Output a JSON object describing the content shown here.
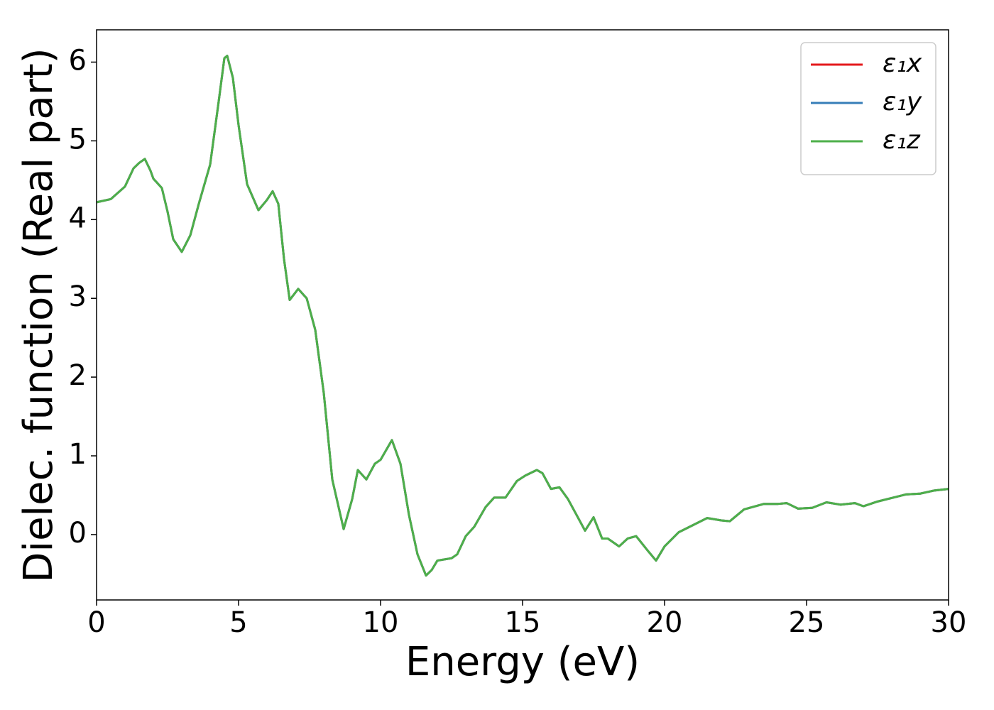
{
  "chart_data": {
    "type": "line",
    "xlabel": "Energy (eV)",
    "ylabel": "Dielec. function (Real part)",
    "x": [
      0,
      0.5,
      1.0,
      1.3,
      1.5,
      1.7,
      1.9,
      2.0,
      2.3,
      2.5,
      2.7,
      3.0,
      3.3,
      3.6,
      4.0,
      4.3,
      4.5,
      4.6,
      4.8,
      5.0,
      5.3,
      5.7,
      6.0,
      6.2,
      6.4,
      6.6,
      6.8,
      7.1,
      7.4,
      7.7,
      8.0,
      8.3,
      8.7,
      9.0,
      9.2,
      9.5,
      9.8,
      10.0,
      10.4,
      10.7,
      11.0,
      11.3,
      11.6,
      11.8,
      12.0,
      12.5,
      12.7,
      13.0,
      13.3,
      13.7,
      14.0,
      14.4,
      14.8,
      15.1,
      15.5,
      15.7,
      16.0,
      16.3,
      16.6,
      16.9,
      17.2,
      17.5,
      17.8,
      18.0,
      18.4,
      18.7,
      19.0,
      19.4,
      19.7,
      20.0,
      20.5,
      21.0,
      21.5,
      22.0,
      22.3,
      22.8,
      23.5,
      24.0,
      24.3,
      24.7,
      25.2,
      25.7,
      26.2,
      26.7,
      27.0,
      27.5,
      28.5,
      29.0,
      29.5,
      30.0
    ],
    "series": [
      {
        "name": "ε₁x",
        "color": "#e41a1c",
        "values": [
          4.22,
          4.26,
          4.42,
          4.65,
          4.72,
          4.77,
          4.62,
          4.52,
          4.4,
          4.1,
          3.75,
          3.59,
          3.8,
          4.2,
          4.7,
          5.5,
          6.05,
          6.08,
          5.8,
          5.2,
          4.45,
          4.12,
          4.25,
          4.36,
          4.2,
          3.5,
          2.98,
          3.12,
          3.0,
          2.6,
          1.8,
          0.7,
          0.07,
          0.45,
          0.82,
          0.7,
          0.9,
          0.95,
          1.2,
          0.9,
          0.25,
          -0.25,
          -0.52,
          -0.45,
          -0.33,
          -0.3,
          -0.25,
          -0.02,
          0.1,
          0.35,
          0.47,
          0.47,
          0.68,
          0.75,
          0.82,
          0.78,
          0.58,
          0.6,
          0.45,
          0.25,
          0.05,
          0.22,
          -0.05,
          -0.05,
          -0.15,
          -0.05,
          -0.02,
          -0.2,
          -0.33,
          -0.15,
          0.03,
          0.12,
          0.21,
          0.18,
          0.17,
          0.32,
          0.39,
          0.39,
          0.4,
          0.33,
          0.34,
          0.41,
          0.38,
          0.4,
          0.36,
          0.42,
          0.51,
          0.52,
          0.56,
          0.58
        ]
      },
      {
        "name": "ε₁y",
        "color": "#377eb8",
        "values": [
          4.22,
          4.26,
          4.42,
          4.65,
          4.72,
          4.77,
          4.62,
          4.52,
          4.4,
          4.1,
          3.75,
          3.59,
          3.8,
          4.2,
          4.7,
          5.5,
          6.05,
          6.08,
          5.8,
          5.2,
          4.45,
          4.12,
          4.25,
          4.36,
          4.2,
          3.5,
          2.98,
          3.12,
          3.0,
          2.6,
          1.8,
          0.7,
          0.07,
          0.45,
          0.82,
          0.7,
          0.9,
          0.95,
          1.2,
          0.9,
          0.25,
          -0.25,
          -0.52,
          -0.45,
          -0.33,
          -0.3,
          -0.25,
          -0.02,
          0.1,
          0.35,
          0.47,
          0.47,
          0.68,
          0.75,
          0.82,
          0.78,
          0.58,
          0.6,
          0.45,
          0.25,
          0.05,
          0.22,
          -0.05,
          -0.05,
          -0.15,
          -0.05,
          -0.02,
          -0.2,
          -0.33,
          -0.15,
          0.03,
          0.12,
          0.21,
          0.18,
          0.17,
          0.32,
          0.39,
          0.39,
          0.4,
          0.33,
          0.34,
          0.41,
          0.38,
          0.4,
          0.36,
          0.42,
          0.51,
          0.52,
          0.56,
          0.58
        ]
      },
      {
        "name": "ε₁z",
        "color": "#4daf4a",
        "values": [
          4.22,
          4.26,
          4.42,
          4.65,
          4.72,
          4.77,
          4.62,
          4.52,
          4.4,
          4.1,
          3.75,
          3.59,
          3.8,
          4.2,
          4.7,
          5.5,
          6.05,
          6.08,
          5.8,
          5.2,
          4.45,
          4.12,
          4.25,
          4.36,
          4.2,
          3.5,
          2.98,
          3.12,
          3.0,
          2.6,
          1.8,
          0.7,
          0.07,
          0.45,
          0.82,
          0.7,
          0.9,
          0.95,
          1.2,
          0.9,
          0.25,
          -0.25,
          -0.52,
          -0.45,
          -0.33,
          -0.3,
          -0.25,
          -0.02,
          0.1,
          0.35,
          0.47,
          0.47,
          0.68,
          0.75,
          0.82,
          0.78,
          0.58,
          0.6,
          0.45,
          0.25,
          0.05,
          0.22,
          -0.05,
          -0.05,
          -0.15,
          -0.05,
          -0.02,
          -0.2,
          -0.33,
          -0.15,
          0.03,
          0.12,
          0.21,
          0.18,
          0.17,
          0.32,
          0.39,
          0.39,
          0.4,
          0.33,
          0.34,
          0.41,
          0.38,
          0.4,
          0.36,
          0.42,
          0.51,
          0.52,
          0.56,
          0.58
        ]
      }
    ],
    "xlim": [
      0,
      30
    ],
    "xticks": [
      0,
      5,
      10,
      15,
      20,
      25,
      30
    ],
    "ylim": [
      -0.83,
      6.41
    ],
    "yticks": [
      0,
      1,
      2,
      3,
      4,
      5,
      6
    ],
    "grid": false,
    "legend": "upper right"
  }
}
